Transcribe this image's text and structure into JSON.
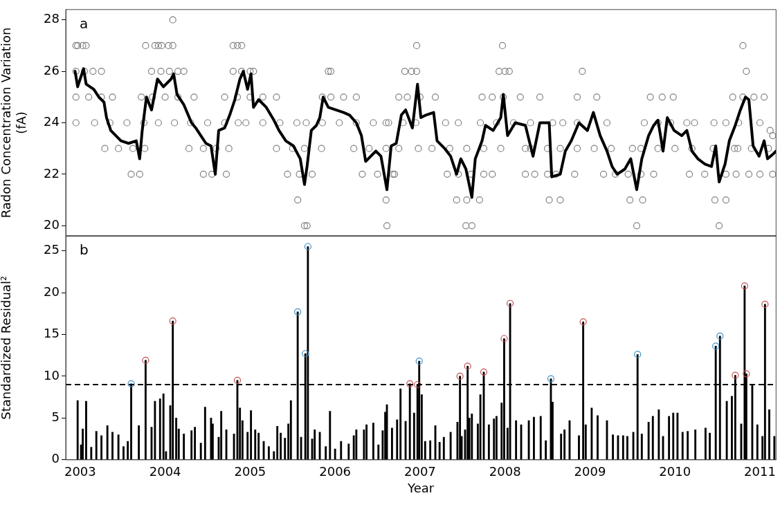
{
  "chart_data": [
    {
      "type": "scatter",
      "ylabel": "Radon Concentration Variation (fA)",
      "annotations": [
        "a"
      ],
      "xlim": [
        2002.83,
        2011.19
      ],
      "xticks": [
        2003,
        2004,
        2005,
        2006,
        2007,
        2008,
        2009,
        2010,
        2011
      ],
      "ylim": [
        19.6,
        28.4
      ],
      "yticks": [
        20,
        22,
        24,
        26,
        28
      ],
      "tick_labels": "y",
      "series": [
        {
          "color": "#808080",
          "marker": "circle",
          "x": [
            2004.09,
            2002.95,
            2002.97,
            2003.03,
            2003.07,
            2003.77,
            2003.88,
            2003.92,
            2003.96,
            2004.04,
            2004.09,
            2004.8,
            2004.85,
            2004.9,
            2006.96,
            2007.97,
            2010.8,
            2002.95,
            2003.05,
            2003.15,
            2003.25,
            2003.84,
            2003.95,
            2004.05,
            2004.15,
            2004.22,
            2004.8,
            2004.9,
            2005.0,
            2005.04,
            2005.92,
            2005.95,
            2006.82,
            2006.9,
            2006.96,
            2007.93,
            2008.0,
            2008.05,
            2008.91,
            2010.84,
            2002.95,
            2003.1,
            2003.25,
            2003.38,
            2003.72,
            2003.85,
            2004.0,
            2004.15,
            2004.34,
            2004.7,
            2004.85,
            2005.0,
            2005.15,
            2005.31,
            2005.85,
            2005.95,
            2006.1,
            2006.25,
            2006.75,
            2006.85,
            2007.0,
            2007.18,
            2007.73,
            2007.85,
            2007.98,
            2008.18,
            2008.41,
            2008.85,
            2009.08,
            2009.71,
            2009.85,
            2009.98,
            2010.68,
            2010.8,
            2010.93,
            2011.05,
            2002.95,
            2003.17,
            2003.35,
            2003.55,
            2003.75,
            2003.92,
            2004.11,
            2004.3,
            2004.5,
            2004.7,
            2004.86,
            2004.95,
            2005.15,
            2005.35,
            2005.55,
            2005.66,
            2005.85,
            2006.05,
            2006.25,
            2006.45,
            2006.6,
            2006.63,
            2006.8,
            2006.95,
            2007.3,
            2007.45,
            2007.71,
            2007.9,
            2008.1,
            2008.3,
            2008.56,
            2008.68,
            2008.85,
            2009.2,
            2009.64,
            2009.8,
            2009.95,
            2010.14,
            2010.23,
            2010.46,
            2010.6,
            2010.75,
            2011.0,
            2011.12,
            2011.15,
            2003.29,
            2003.45,
            2003.62,
            2003.76,
            2004.28,
            2004.45,
            2004.6,
            2004.75,
            2005.31,
            2005.5,
            2005.64,
            2005.84,
            2006.22,
            2006.4,
            2006.6,
            2006.75,
            2006.98,
            2007.14,
            2007.35,
            2007.55,
            2007.75,
            2007.95,
            2008.24,
            2008.3,
            2008.5,
            2008.65,
            2008.85,
            2009.05,
            2009.25,
            2009.5,
            2009.6,
            2009.8,
            2010.0,
            2010.2,
            2010.45,
            2010.7,
            2010.74,
            2010.9,
            2011.1,
            2003.6,
            2003.7,
            2004.45,
            2004.55,
            2004.72,
            2005.44,
            2005.58,
            2005.73,
            2006.32,
            2006.5,
            2006.68,
            2006.7,
            2007.32,
            2007.45,
            2007.6,
            2007.75,
            2007.85,
            2008.24,
            2008.35,
            2008.5,
            2008.6,
            2008.82,
            2009.16,
            2009.3,
            2009.45,
            2009.6,
            2009.75,
            2010.17,
            2010.35,
            2010.6,
            2010.72,
            2010.87,
            2011.0,
            2011.15,
            2005.56,
            2006.6,
            2007.43,
            2007.55,
            2007.7,
            2008.52,
            2008.65,
            2009.47,
            2009.62,
            2010.47,
            2010.6,
            2005.64,
            2005.67,
            2006.61,
            2007.54,
            2007.61,
            2009.55,
            2010.52
          ],
          "values": [
            28,
            27,
            27,
            27,
            27,
            27,
            27,
            27,
            27,
            27,
            27,
            27,
            27,
            27,
            27,
            27,
            27,
            26,
            26,
            26,
            26,
            26,
            26,
            26,
            26,
            26,
            26,
            26,
            26,
            26,
            26,
            26,
            26,
            26,
            26,
            26,
            26,
            26,
            26,
            26,
            25,
            25,
            25,
            25,
            25,
            25,
            25,
            25,
            25,
            25,
            25,
            25,
            25,
            25,
            25,
            25,
            25,
            25,
            25,
            25,
            25,
            25,
            25,
            25,
            25,
            25,
            25,
            25,
            25,
            25,
            25,
            25,
            25,
            25,
            25,
            25,
            24,
            24,
            24,
            24,
            24,
            24,
            24,
            24,
            24,
            24,
            24,
            24,
            24,
            24,
            24,
            24,
            24,
            24,
            24,
            24,
            24,
            24,
            24,
            24,
            24,
            24,
            24,
            24,
            24,
            24,
            24,
            24,
            24,
            24,
            24,
            24,
            24,
            24,
            24,
            24,
            24,
            24,
            24,
            23.7,
            23.5,
            23,
            23,
            23,
            23,
            23,
            23,
            23,
            23,
            23,
            23,
            23,
            23,
            23,
            23,
            23,
            23,
            23,
            23,
            23,
            23,
            23,
            23,
            23,
            23,
            23,
            23,
            23,
            23,
            23,
            23,
            23,
            23,
            23,
            23,
            23,
            23,
            23,
            23,
            23,
            22,
            22,
            22,
            22,
            22,
            22,
            22,
            22,
            22,
            22,
            22,
            22,
            22,
            22,
            22,
            22,
            22,
            22,
            22,
            22,
            22,
            22,
            22,
            22,
            22,
            22,
            22,
            22,
            22,
            22,
            22,
            22,
            22,
            22,
            21,
            21,
            21,
            21,
            21,
            21,
            21,
            21,
            21,
            21,
            21,
            20,
            20,
            20,
            20,
            20,
            20,
            20
          ]
        },
        {
          "type": "line",
          "color": "#000000",
          "marker": "none",
          "x": [
            2002.94,
            2002.97,
            2003.04,
            2003.07,
            2003.16,
            2003.22,
            2003.28,
            2003.31,
            2003.36,
            2003.42,
            2003.48,
            2003.57,
            2003.66,
            2003.7,
            2003.73,
            2003.78,
            2003.84,
            2003.91,
            2003.98,
            2004.07,
            2004.1,
            2004.14,
            2004.22,
            2004.31,
            2004.36,
            2004.42,
            2004.48,
            2004.54,
            2004.59,
            2004.63,
            2004.7,
            2004.76,
            2004.82,
            2004.88,
            2004.92,
            2004.97,
            2005.01,
            2005.04,
            2005.1,
            2005.19,
            2005.28,
            2005.34,
            2005.42,
            2005.51,
            2005.59,
            2005.64,
            2005.67,
            2005.72,
            2005.78,
            2005.82,
            2005.86,
            2005.92,
            2006.01,
            2006.1,
            2006.17,
            2006.25,
            2006.31,
            2006.36,
            2006.42,
            2006.48,
            2006.54,
            2006.61,
            2006.66,
            2006.72,
            2006.78,
            2006.83,
            2006.91,
            2006.97,
            2007.01,
            2007.07,
            2007.16,
            2007.2,
            2007.29,
            2007.36,
            2007.43,
            2007.48,
            2007.54,
            2007.61,
            2007.65,
            2007.73,
            2007.77,
            2007.86,
            2007.95,
            2007.98,
            2008.03,
            2008.12,
            2008.24,
            2008.33,
            2008.41,
            2008.52,
            2008.55,
            2008.65,
            2008.71,
            2008.78,
            2008.87,
            2008.97,
            2009.04,
            2009.12,
            2009.2,
            2009.26,
            2009.32,
            2009.41,
            2009.48,
            2009.55,
            2009.61,
            2009.69,
            2009.75,
            2009.8,
            2009.86,
            2009.91,
            2009.99,
            2010.08,
            2010.14,
            2010.2,
            2010.27,
            2010.35,
            2010.43,
            2010.48,
            2010.52,
            2010.59,
            2010.64,
            2010.71,
            2010.77,
            2010.83,
            2010.87,
            2010.92,
            2010.99,
            2011.05,
            2011.09,
            2011.16,
            2011.19
          ],
          "values": [
            26,
            25.4,
            26.1,
            25.5,
            25.3,
            25,
            24.8,
            24.2,
            23.7,
            23.5,
            23.3,
            23.2,
            23.3,
            22.6,
            23.7,
            25,
            24.5,
            25.7,
            25.4,
            25.7,
            25.9,
            25.1,
            24.7,
            24,
            23.8,
            23.5,
            23.2,
            23.1,
            22,
            23.7,
            23.8,
            24.3,
            24.9,
            25.7,
            26,
            25.3,
            25.9,
            24.6,
            24.9,
            24.6,
            24.1,
            23.7,
            23.3,
            23.1,
            22.6,
            21.6,
            22.3,
            23.7,
            23.9,
            24.2,
            25,
            24.6,
            24.5,
            24.4,
            24.3,
            24,
            23.5,
            22.5,
            22.7,
            22.9,
            22.7,
            21.4,
            23.1,
            23.2,
            24.3,
            24.5,
            23.8,
            25.5,
            24.2,
            24.3,
            24.4,
            23.3,
            23,
            22.7,
            22,
            22.6,
            22.2,
            21.1,
            22.6,
            23.3,
            23.9,
            23.7,
            24.2,
            25.1,
            23.5,
            24,
            23.9,
            22.7,
            24,
            24,
            21.9,
            22,
            22.9,
            23.3,
            24,
            23.7,
            24.4,
            23.5,
            22.9,
            22.3,
            22,
            22.2,
            22.6,
            21.4,
            22.6,
            23.5,
            23.9,
            24.1,
            22.9,
            24.2,
            23.7,
            23.5,
            23.7,
            22.9,
            22.6,
            22.4,
            22.3,
            23.1,
            21.7,
            22.4,
            23.3,
            23.9,
            24.5,
            25,
            24.9,
            23.1,
            22.7,
            23.3,
            22.6,
            22.8,
            22.9
          ]
        }
      ]
    },
    {
      "type": "bar",
      "xlabel": "Year",
      "ylabel": "Standardized Residual²",
      "annotations": [
        "b"
      ],
      "xlim": [
        2002.83,
        2011.19
      ],
      "xticks": [
        2003,
        2004,
        2005,
        2006,
        2007,
        2008,
        2009,
        2010,
        2011
      ],
      "ylim": [
        0,
        26.8
      ],
      "yticks": [
        0,
        5,
        10,
        15,
        20,
        25
      ],
      "ref_lines": [
        {
          "axis": "y",
          "value": 9,
          "color": "#000000",
          "line_style": "dashed"
        }
      ],
      "series": [
        {
          "color": "#000000",
          "x": [
            2002.97,
            2003.01,
            2003.03,
            2003.07,
            2003.13,
            2003.19,
            2003.25,
            2003.32,
            2003.38,
            2003.45,
            2003.51,
            2003.56,
            2003.6,
            2003.69,
            2003.77,
            2003.84,
            2003.88,
            2003.94,
            2003.98,
            2004.01,
            2004.06,
            2004.09,
            2004.13,
            2004.16,
            2004.22,
            2004.31,
            2004.35,
            2004.42,
            2004.47,
            2004.54,
            2004.56,
            2004.63,
            2004.66,
            2004.72,
            2004.81,
            2004.85,
            2004.88,
            2004.91,
            2004.97,
            2005.01,
            2005.06,
            2005.1,
            2005.16,
            2005.22,
            2005.28,
            2005.32,
            2005.36,
            2005.41,
            2005.45,
            2005.48,
            2005.56,
            2005.6,
            2005.65,
            2005.68,
            2005.73,
            2005.76,
            2005.82,
            2005.89,
            2005.94,
            2006.0,
            2006.07,
            2006.16,
            2006.22,
            2006.25,
            2006.34,
            2006.37,
            2006.45,
            2006.51,
            2006.56,
            2006.59,
            2006.61,
            2006.67,
            2006.73,
            2006.77,
            2006.83,
            2006.88,
            2006.93,
            2006.97,
            2006.99,
            2007.02,
            2007.06,
            2007.12,
            2007.18,
            2007.23,
            2007.28,
            2007.31,
            2007.36,
            2007.44,
            2007.47,
            2007.49,
            2007.53,
            2007.56,
            2007.58,
            2007.61,
            2007.68,
            2007.71,
            2007.75,
            2007.81,
            2007.87,
            2007.9,
            2007.96,
            2007.99,
            2008.03,
            2008.06,
            2008.13,
            2008.19,
            2008.28,
            2008.34,
            2008.42,
            2008.48,
            2008.54,
            2008.56,
            2008.66,
            2008.7,
            2008.76,
            2008.87,
            2008.92,
            2008.95,
            2009.02,
            2009.09,
            2009.2,
            2009.27,
            2009.33,
            2009.39,
            2009.44,
            2009.51,
            2009.56,
            2009.61,
            2009.69,
            2009.74,
            2009.81,
            2009.86,
            2009.93,
            2009.98,
            2010.03,
            2010.09,
            2010.15,
            2010.21,
            2010.24,
            2010.36,
            2010.41,
            2010.48,
            2010.53,
            2010.61,
            2010.67,
            2010.71,
            2010.78,
            2010.82,
            2010.84,
            2010.91,
            2010.97,
            2011.03,
            2011.06,
            2011.11,
            2011.17
          ],
          "values": [
            7.1,
            1.8,
            3.7,
            7,
            1.5,
            3.4,
            2.9,
            4.1,
            3.3,
            3,
            1.6,
            2.2,
            9.1,
            4.1,
            11.9,
            3.9,
            7,
            7.3,
            7.9,
            1,
            6.5,
            16.6,
            5,
            3.7,
            3.1,
            3.5,
            3.9,
            2,
            6.3,
            5,
            4.3,
            2.7,
            5.8,
            3.6,
            3.1,
            9.5,
            6.2,
            4.7,
            3.3,
            5.9,
            3.6,
            3.2,
            2.2,
            1.6,
            1,
            4,
            3.2,
            2.6,
            4.3,
            7.1,
            17.7,
            2.7,
            12.7,
            25.5,
            2.5,
            3.6,
            3.3,
            1.6,
            5.8,
            1.3,
            2.2,
            1.9,
            2.9,
            3.6,
            3.6,
            4.2,
            4.4,
            1.8,
            3.5,
            5.7,
            6.6,
            3.8,
            4.8,
            8.5,
            4.6,
            9.1,
            5.6,
            9,
            11.8,
            7.8,
            2.2,
            2.3,
            4.1,
            2.1,
            2.7,
            0,
            3.3,
            4.5,
            10,
            2.8,
            3.6,
            11.2,
            5,
            5.5,
            4.3,
            7.8,
            10.5,
            4.2,
            4.9,
            5.2,
            6.8,
            14.5,
            3.8,
            18.7,
            4.7,
            4.2,
            4.7,
            5.1,
            5.2,
            2.3,
            9.7,
            6.9,
            3.1,
            3.6,
            4.7,
            2.9,
            16.5,
            4.2,
            6.2,
            5.3,
            4.7,
            3,
            2.9,
            2.9,
            2.8,
            3.3,
            12.6,
            3.1,
            4.5,
            5.2,
            6,
            2.8,
            5.2,
            5.6,
            5.6,
            3.3,
            3.4,
            0,
            3.6,
            3.8,
            3.2,
            13.6,
            14.8,
            7,
            7.6,
            10.1,
            4.3,
            20.8,
            10.3,
            8.9,
            4.2,
            2.8,
            18.6,
            6,
            2.8
          ]
        },
        {
          "type": "scatter",
          "color": "#c44e52",
          "marker": "circle",
          "x": [
            2003.77,
            2004.09,
            2004.85,
            2006.88,
            2006.97,
            2007.47,
            2007.56,
            2007.75,
            2007.99,
            2008.06,
            2008.92,
            2010.71,
            2010.82,
            2010.84,
            2011.06
          ],
          "values": [
            11.9,
            16.6,
            9.5,
            9.1,
            9,
            10,
            11.2,
            10.5,
            14.5,
            18.7,
            16.5,
            10.1,
            20.8,
            10.3,
            18.6
          ]
        },
        {
          "type": "scatter",
          "color": "#3a8fc9",
          "marker": "circle",
          "x": [
            2003.6,
            2005.56,
            2005.65,
            2005.68,
            2006.99,
            2008.54,
            2009.56,
            2010.48,
            2010.53
          ],
          "values": [
            9.1,
            17.7,
            12.7,
            25.5,
            11.8,
            9.7,
            12.6,
            13.6,
            14.8
          ]
        }
      ]
    }
  ]
}
